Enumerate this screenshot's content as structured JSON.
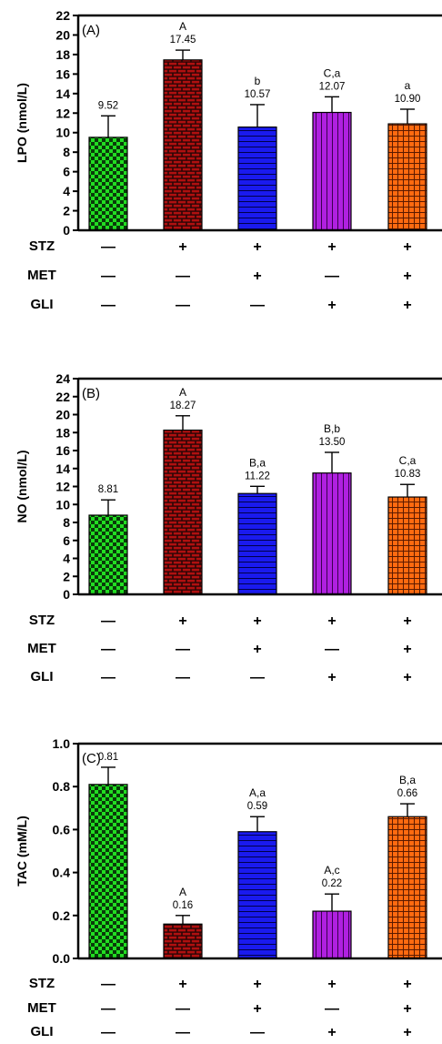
{
  "chart_data": [
    {
      "type": "bar",
      "panel_label": "(A)",
      "ylabel": "LPO (nmol/L)",
      "ylim": [
        0,
        22
      ],
      "yticks": [
        0,
        2,
        4,
        6,
        8,
        10,
        12,
        14,
        16,
        18,
        20,
        22
      ],
      "values": [
        9.52,
        17.45,
        10.57,
        12.07,
        10.9
      ],
      "value_labels": [
        "9.52",
        "17.45",
        "10.57",
        "12.07",
        "10.90"
      ],
      "errors": [
        2.2,
        1.0,
        2.3,
        1.6,
        1.5
      ],
      "sig_labels": [
        "",
        "A",
        "b",
        "C,a",
        "a"
      ]
    },
    {
      "type": "bar",
      "panel_label": "(B)",
      "ylabel": "NO (nmol/L)",
      "ylim": [
        0,
        24
      ],
      "yticks": [
        0,
        2,
        4,
        6,
        8,
        10,
        12,
        14,
        16,
        18,
        20,
        22,
        24
      ],
      "values": [
        8.81,
        18.27,
        11.22,
        13.5,
        10.83
      ],
      "value_labels": [
        "8.81",
        "18.27",
        "11.22",
        "13.50",
        "10.83"
      ],
      "errors": [
        1.7,
        1.6,
        0.8,
        2.3,
        1.4
      ],
      "sig_labels": [
        "",
        "A",
        "B,a",
        "B,b",
        "C,a"
      ]
    },
    {
      "type": "bar",
      "panel_label": "(C)",
      "ylabel": "TAC (mM/L)",
      "ylim": [
        0,
        1.0
      ],
      "yticks": [
        "0.0",
        "0.2",
        "0.4",
        "0.6",
        "0.8",
        "1.0"
      ],
      "values": [
        0.81,
        0.16,
        0.59,
        0.22,
        0.66
      ],
      "value_labels": [
        "0.81",
        "0.16",
        "0.59",
        "0.22",
        "0.66"
      ],
      "errors": [
        0.08,
        0.04,
        0.07,
        0.08,
        0.06
      ],
      "sig_labels": [
        "",
        "A",
        "A,a",
        "A,c",
        "B,a"
      ]
    }
  ],
  "groups": [
    {
      "name": "control",
      "color": "#22dd22",
      "pattern": "checker",
      "treatment": [
        "—",
        "—",
        "—"
      ]
    },
    {
      "name": "stz",
      "color": "#b01010",
      "pattern": "brick",
      "treatment": [
        "+",
        "—",
        "—"
      ]
    },
    {
      "name": "stz-met",
      "color": "#1a1aee",
      "pattern": "hlines",
      "treatment": [
        "+",
        "+",
        "—"
      ]
    },
    {
      "name": "stz-gli",
      "color": "#b020e0",
      "pattern": "vlines",
      "treatment": [
        "+",
        "—",
        "+"
      ]
    },
    {
      "name": "stz-met-gli",
      "color": "#ff6a10",
      "pattern": "grid",
      "treatment": [
        "+",
        "+",
        "+"
      ]
    }
  ],
  "treatment_rows": [
    "STZ",
    "MET",
    "GLI"
  ]
}
